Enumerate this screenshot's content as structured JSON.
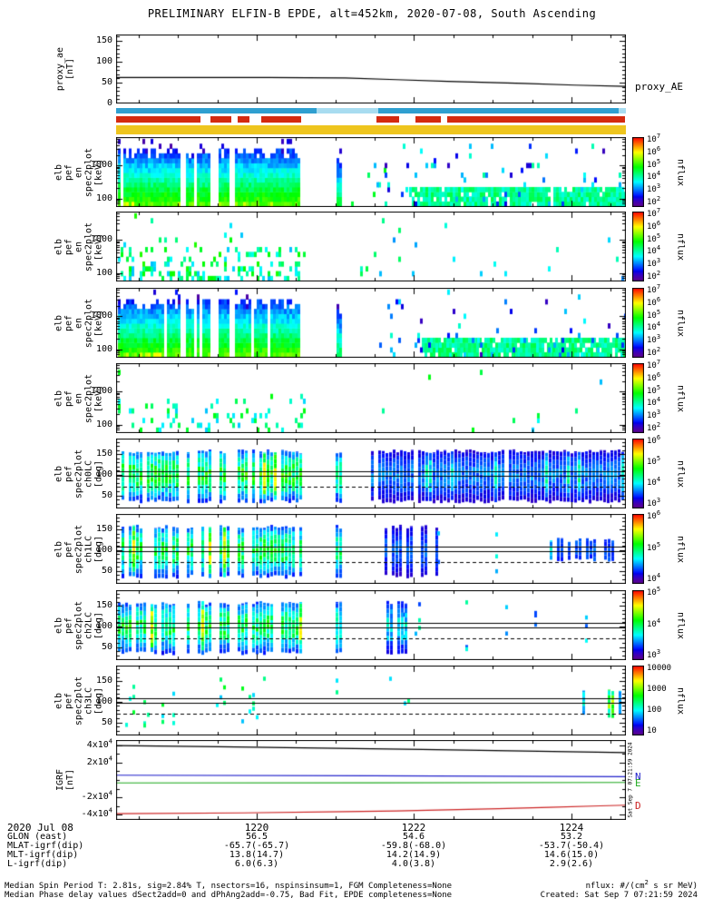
{
  "title": "PRELIMINARY ELFIN-B EPDE, alt=452km, 2020-07-08, South Ascending",
  "xaxis": {
    "date_label": "2020 Jul 08",
    "ticks": [
      {
        "label": "1220",
        "f": 0.276
      },
      {
        "label": "1222",
        "f": 0.5845
      },
      {
        "label": "1224",
        "f": 0.893
      }
    ]
  },
  "info_rows": [
    {
      "label": "GLON (east)",
      "values": [
        "56.5",
        "54.6",
        "53.2"
      ]
    },
    {
      "label": "MLAT-igrf(dip)",
      "values": [
        "-65.7(-65.7)",
        "-59.8(-68.0)",
        "-53.7(-50.4)"
      ]
    },
    {
      "label": "MLT-igrf(dip)",
      "values": [
        "13.8(14.7)",
        "14.2(14.9)",
        "14.6(15.0)"
      ]
    },
    {
      "label": "L-igrf(dip)",
      "values": [
        "6.0(6.3)",
        "4.0(3.8)",
        "2.9(2.6)"
      ]
    }
  ],
  "footer": {
    "left1": "Median Spin Period T: 2.81s, sig=2.84% T, nsectors=16, nspinsinsum=1, FGM Completeness=None",
    "left2": "Median Phase delay values dSect2add=0 and dPhAng2add=-0.75, Bad Fit, EPDE completeness=None",
    "right1": "nflux: #/(cm^2 s sr MeV)",
    "right2": "Created: Sat Sep 7 07:21:59 2024"
  },
  "strips": [
    {
      "name": "science-zone-blue",
      "y": 119,
      "h": 6,
      "base": "#2f9fd0",
      "overlays": [
        {
          "t0": 0.393,
          "t1": 0.515,
          "color": "#a8dcf0"
        },
        {
          "t0": 0.985,
          "t1": 1.0,
          "color": "#a8dcf0"
        }
      ]
    },
    {
      "name": "quality-red",
      "y": 128,
      "h": 7,
      "base": "#ffffff",
      "overlays": [
        {
          "t0": 0.0,
          "t1": 0.165,
          "color": "#d42a10"
        },
        {
          "t0": 0.185,
          "t1": 0.226,
          "color": "#d42a10"
        },
        {
          "t0": 0.238,
          "t1": 0.262,
          "color": "#d42a10"
        },
        {
          "t0": 0.285,
          "t1": 0.363,
          "color": "#d42a10"
        },
        {
          "t0": 0.511,
          "t1": 0.555,
          "color": "#d42a10"
        },
        {
          "t0": 0.587,
          "t1": 0.637,
          "color": "#d42a10"
        },
        {
          "t0": 0.65,
          "t1": 0.998,
          "color": "#d42a10"
        }
      ]
    },
    {
      "name": "mode-yellow",
      "y": 138,
      "h": 10,
      "base": "#eec51e",
      "overlays": []
    }
  ],
  "chart_data": [
    {
      "type": "line",
      "scale": "linear",
      "name": "proxy-ae",
      "ylabel_lines": [
        "proxy_ae",
        "[nT]"
      ],
      "yticks": [
        [
          0,
          "0"
        ],
        [
          50,
          "50"
        ],
        [
          100,
          "100"
        ],
        [
          150,
          "150"
        ]
      ],
      "yminor": 10,
      "yrange": [
        0,
        165
      ],
      "right_label": "proxy_AE",
      "series": [
        {
          "name": "proxy_AE",
          "color": "#000000",
          "points": [
            [
              0,
              62
            ],
            [
              0.3,
              62
            ],
            [
              0.45,
              61
            ],
            [
              0.55,
              57
            ],
            [
              0.65,
              53
            ],
            [
              0.8,
              48
            ],
            [
              0.9,
              44
            ],
            [
              1,
              41
            ]
          ]
        }
      ]
    },
    {
      "type": "spec",
      "scale": "log",
      "name": "en-spec2plot-omni",
      "ylabel_lines": [
        "elb",
        "pef",
        "en",
        "spec2plot",
        "[keV]"
      ],
      "yticks": [
        [
          100,
          "100"
        ],
        [
          1000,
          "1000"
        ]
      ],
      "yminor": "log",
      "yrange": [
        55,
        7000
      ],
      "cbar": {
        "ticks": [
          "10^7",
          "10^6",
          "10^5",
          "10^4",
          "10^3",
          "10^2"
        ],
        "label": "nflux"
      },
      "regions": [
        {
          "mode": "dense",
          "t0": 0.004,
          "t1": 0.362,
          "emax": 2400,
          "seed": 101,
          "gaps": [
            [
              0.122,
              0.133
            ],
            [
              0.15,
              0.158
            ],
            [
              0.185,
              0.197
            ],
            [
              0.221,
              0.232
            ]
          ]
        },
        {
          "mode": "dense",
          "t0": 0.433,
          "t1": 0.443,
          "emax": 1400,
          "vadj": -0.12,
          "seed": 102
        },
        {
          "mode": "sparse",
          "t0": 0.45,
          "t1": 0.57,
          "p": 0.03,
          "seed": 103
        },
        {
          "mode": "band",
          "t0": 0.575,
          "t1": 0.998,
          "seed": 104
        },
        {
          "mode": "sparse",
          "t0": 0.5,
          "t1": 0.998,
          "p": 0.06,
          "vlo": 0.08,
          "vhi": 0.45,
          "seed": 105
        }
      ]
    },
    {
      "type": "spec",
      "scale": "log",
      "name": "en-spec2plot-para",
      "ylabel_lines": [
        "elb",
        "pef",
        "en",
        "spec2plot",
        "[keV]"
      ],
      "yticks": [
        [
          100,
          "100"
        ],
        [
          1000,
          "1000"
        ]
      ],
      "yminor": "log",
      "yrange": [
        55,
        7000
      ],
      "cbar": {
        "ticks": [
          "10^7",
          "10^6",
          "10^5",
          "10^4",
          "10^3",
          "10^2"
        ],
        "label": "nflux"
      },
      "regions": [
        {
          "mode": "sparse",
          "t0": 0.004,
          "t1": 0.37,
          "p": 0.22,
          "emaxf": 0.45,
          "vlo": 0.3,
          "vhi": 0.6,
          "seed": 201
        },
        {
          "mode": "sparse",
          "t0": 0.42,
          "t1": 0.5,
          "p": 0.03,
          "seed": 202
        },
        {
          "mode": "sparse",
          "t0": 0.5,
          "t1": 0.998,
          "p": 0.015,
          "vlo": 0.25,
          "vhi": 0.5,
          "seed": 203
        }
      ]
    },
    {
      "type": "spec",
      "scale": "log",
      "name": "en-spec2plot-anti",
      "ylabel_lines": [
        "elb",
        "pef",
        "en",
        "spec2plot",
        "[keV]"
      ],
      "yticks": [
        [
          100,
          "100"
        ],
        [
          1000,
          "1000"
        ]
      ],
      "yminor": "log",
      "yrange": [
        55,
        7000
      ],
      "cbar": {
        "ticks": [
          "10^7",
          "10^6",
          "10^5",
          "10^4",
          "10^3",
          "10^2"
        ],
        "label": "nflux"
      },
      "regions": [
        {
          "mode": "dense",
          "t0": 0.004,
          "t1": 0.362,
          "emax": 2400,
          "seed": 301,
          "gaps": [
            [
              0.122,
              0.133
            ],
            [
              0.15,
              0.158
            ],
            [
              0.185,
              0.197
            ],
            [
              0.221,
              0.232
            ]
          ]
        },
        {
          "mode": "dense",
          "t0": 0.433,
          "t1": 0.443,
          "emax": 1400,
          "vadj": -0.12,
          "seed": 302
        },
        {
          "mode": "band",
          "t0": 0.6,
          "t1": 0.998,
          "seed": 303
        },
        {
          "mode": "sparse",
          "t0": 0.5,
          "t1": 0.998,
          "p": 0.05,
          "vlo": 0.08,
          "vhi": 0.45,
          "seed": 304
        }
      ]
    },
    {
      "type": "spec",
      "scale": "log",
      "name": "en-spec2plot-perp",
      "ylabel_lines": [
        "elb",
        "pef",
        "en",
        "spec2plot",
        "[keV]"
      ],
      "yticks": [
        [
          100,
          "100"
        ],
        [
          1000,
          "1000"
        ]
      ],
      "yminor": "log",
      "yrange": [
        55,
        7000
      ],
      "cbar": {
        "ticks": [
          "10^7",
          "10^6",
          "10^5",
          "10^4",
          "10^3",
          "10^2"
        ],
        "label": "nflux"
      },
      "regions": [
        {
          "mode": "sparse",
          "t0": 0.004,
          "t1": 0.37,
          "p": 0.12,
          "emaxf": 0.5,
          "vlo": 0.3,
          "vhi": 0.58,
          "seed": 401
        },
        {
          "mode": "sparse",
          "t0": 0.5,
          "t1": 0.998,
          "p": 0.008,
          "seed": 402
        }
      ]
    },
    {
      "type": "spec",
      "scale": "linear",
      "name": "spec2plot-ch0LC",
      "ylabel_lines": [
        "elb",
        "pef",
        "spec2plot",
        "ch0LC",
        "[deg]"
      ],
      "yticks": [
        [
          50,
          "50"
        ],
        [
          100,
          "100"
        ],
        [
          150,
          "150"
        ]
      ],
      "yminor": 10,
      "yrange": [
        18,
        188
      ],
      "cbar": {
        "ticks": [
          "10^6",
          "10^5",
          "10^4",
          "10^3"
        ],
        "label": "nflux"
      },
      "hlines": [
        {
          "v": 108,
          "style": "solid"
        },
        {
          "v": 97,
          "style": "solid"
        },
        {
          "v": 70,
          "style": "dashed"
        }
      ],
      "regions": [
        {
          "mode": "pa",
          "t0": 0.004,
          "t1": 0.365,
          "p": 0.85,
          "v": 0.48,
          "seed": 501,
          "gaps": [
            [
              0.122,
              0.133
            ],
            [
              0.15,
              0.158
            ],
            [
              0.185,
              0.197
            ],
            [
              0.221,
              0.232
            ]
          ]
        },
        {
          "mode": "pa",
          "t0": 0.43,
          "t1": 0.445,
          "p": 1,
          "v": 0.42,
          "seed": 502
        },
        {
          "mode": "pa",
          "t0": 0.5,
          "t1": 0.995,
          "p": 0.82,
          "v": 0.2,
          "seed": 503
        }
      ]
    },
    {
      "type": "spec",
      "scale": "linear",
      "name": "spec2plot-ch1LC",
      "ylabel_lines": [
        "elb",
        "pef",
        "spec2plot",
        "ch1LC",
        "[deg]"
      ],
      "yticks": [
        [
          50,
          "50"
        ],
        [
          100,
          "100"
        ],
        [
          150,
          "150"
        ]
      ],
      "yminor": 10,
      "yrange": [
        18,
        188
      ],
      "cbar": {
        "ticks": [
          "10^6",
          "10^5",
          "10^4"
        ],
        "label": "nflux"
      },
      "hlines": [
        {
          "v": 108,
          "style": "solid"
        },
        {
          "v": 97,
          "style": "solid"
        },
        {
          "v": 70,
          "style": "dashed"
        }
      ],
      "regions": [
        {
          "mode": "pa",
          "t0": 0.004,
          "t1": 0.365,
          "p": 0.8,
          "v": 0.45,
          "seed": 601,
          "gaps": [
            [
              0.122,
              0.133
            ],
            [
              0.15,
              0.158
            ],
            [
              0.185,
              0.197
            ],
            [
              0.221,
              0.232
            ]
          ]
        },
        {
          "mode": "pa",
          "t0": 0.43,
          "t1": 0.445,
          "p": 1,
          "v": 0.4,
          "seed": 602
        },
        {
          "mode": "pa",
          "t0": 0.52,
          "t1": 0.63,
          "p": 0.5,
          "v": 0.17,
          "seed": 603
        },
        {
          "mode": "pa-sparse",
          "t0": 0.63,
          "t1": 0.85,
          "p": 0.12,
          "v": 0.15,
          "seed": 604
        },
        {
          "mode": "pa",
          "t0": 0.85,
          "t1": 0.995,
          "p": 0.55,
          "v": 0.16,
          "amin": 70,
          "amax": 130,
          "seed": 605
        }
      ]
    },
    {
      "type": "spec",
      "scale": "linear",
      "name": "spec2plot-ch2LC",
      "ylabel_lines": [
        "elb",
        "pef",
        "spec2plot",
        "ch2LC",
        "[deg]"
      ],
      "yticks": [
        [
          50,
          "50"
        ],
        [
          100,
          "100"
        ],
        [
          150,
          "150"
        ]
      ],
      "yminor": 10,
      "yrange": [
        18,
        188
      ],
      "cbar": {
        "ticks": [
          "10^5",
          "10^4",
          "10^3"
        ],
        "label": "nflux"
      },
      "hlines": [
        {
          "v": 108,
          "style": "solid"
        },
        {
          "v": 97,
          "style": "solid"
        },
        {
          "v": 70,
          "style": "dashed"
        }
      ],
      "regions": [
        {
          "mode": "pa",
          "t0": 0.004,
          "t1": 0.365,
          "p": 0.75,
          "v": 0.45,
          "seed": 701,
          "gaps": [
            [
              0.122,
              0.133
            ],
            [
              0.15,
              0.158
            ],
            [
              0.185,
              0.197
            ],
            [
              0.221,
              0.232
            ]
          ]
        },
        {
          "mode": "pa",
          "t0": 0.43,
          "t1": 0.445,
          "p": 1,
          "v": 0.4,
          "seed": 702
        },
        {
          "mode": "pa-sparse",
          "t0": 0.5,
          "t1": 0.995,
          "p": 0.12,
          "v": 0.2,
          "seed": 703
        },
        {
          "mode": "pa",
          "t0": 0.53,
          "t1": 0.57,
          "p": 0.6,
          "v": 0.3,
          "seed": 704
        }
      ]
    },
    {
      "type": "spec",
      "scale": "linear",
      "name": "spec2plot-ch3LC",
      "ylabel_lines": [
        "elb",
        "pef",
        "spec2plot",
        "ch3LC",
        "[deg]"
      ],
      "yticks": [
        [
          50,
          "50"
        ],
        [
          100,
          "100"
        ],
        [
          150,
          "150"
        ]
      ],
      "yminor": 10,
      "yrange": [
        18,
        188
      ],
      "cbar": {
        "ticks": [
          "10000",
          "1000",
          "100",
          "10"
        ],
        "label": "nflux"
      },
      "hlines": [
        {
          "v": 108,
          "style": "solid"
        },
        {
          "v": 97,
          "style": "solid"
        },
        {
          "v": 70,
          "style": "dashed"
        }
      ],
      "regions": [
        {
          "mode": "pa-sparse",
          "t0": 0.004,
          "t1": 0.365,
          "p": 0.35,
          "v": 0.3,
          "seed": 801
        },
        {
          "mode": "pa-sparse",
          "t0": 0.43,
          "t1": 0.45,
          "p": 0.3,
          "v": 0.3,
          "seed": 802
        },
        {
          "mode": "pa-sparse",
          "t0": 0.5,
          "t1": 0.9,
          "p": 0.07,
          "v": 0.25,
          "seed": 803
        },
        {
          "mode": "pa",
          "t0": 0.9,
          "t1": 0.995,
          "p": 0.35,
          "v": 0.3,
          "amin": 60,
          "amax": 130,
          "seed": 804
        }
      ]
    },
    {
      "type": "line",
      "scale": "linear",
      "name": "igrf",
      "ylabel_lines": [
        "IGRF",
        "[nT]"
      ],
      "yticks": [
        [
          40000,
          "4x10^4"
        ],
        [
          20000,
          "2x10^4"
        ],
        [
          -20000,
          "-2x10^4"
        ],
        [
          -40000,
          "-4x10^4"
        ]
      ],
      "yminor": 10000,
      "yrange": [
        -46000,
        46000
      ],
      "vertical_note": "Sat Sep 7 07:21:59 2024",
      "series": [
        {
          "name": "B",
          "color": "#000000",
          "points": [
            [
              0,
              39500
            ],
            [
              0.2,
              38300
            ],
            [
              0.4,
              36800
            ],
            [
              0.6,
              35200
            ],
            [
              0.8,
              33400
            ],
            [
              1,
              31500
            ]
          ]
        },
        {
          "name": "N",
          "color": "#2222cc",
          "right_label": "N",
          "points": [
            [
              0,
              5500
            ],
            [
              0.5,
              4800
            ],
            [
              1,
              3800
            ]
          ]
        },
        {
          "name": "E",
          "color": "#22aa22",
          "right_label": "E",
          "points": [
            [
              0,
              -3400
            ],
            [
              0.5,
              -3300
            ],
            [
              1,
              -2900
            ]
          ]
        },
        {
          "name": "D",
          "color": "#cc2222",
          "right_label": "D",
          "points": [
            [
              0,
              -38800
            ],
            [
              0.25,
              -37900
            ],
            [
              0.45,
              -36500
            ],
            [
              0.55,
              -35600
            ],
            [
              0.65,
              -34400
            ],
            [
              0.75,
              -33000
            ],
            [
              0.85,
              -31500
            ],
            [
              0.95,
              -29800
            ],
            [
              1,
              -29000
            ]
          ]
        }
      ]
    }
  ]
}
